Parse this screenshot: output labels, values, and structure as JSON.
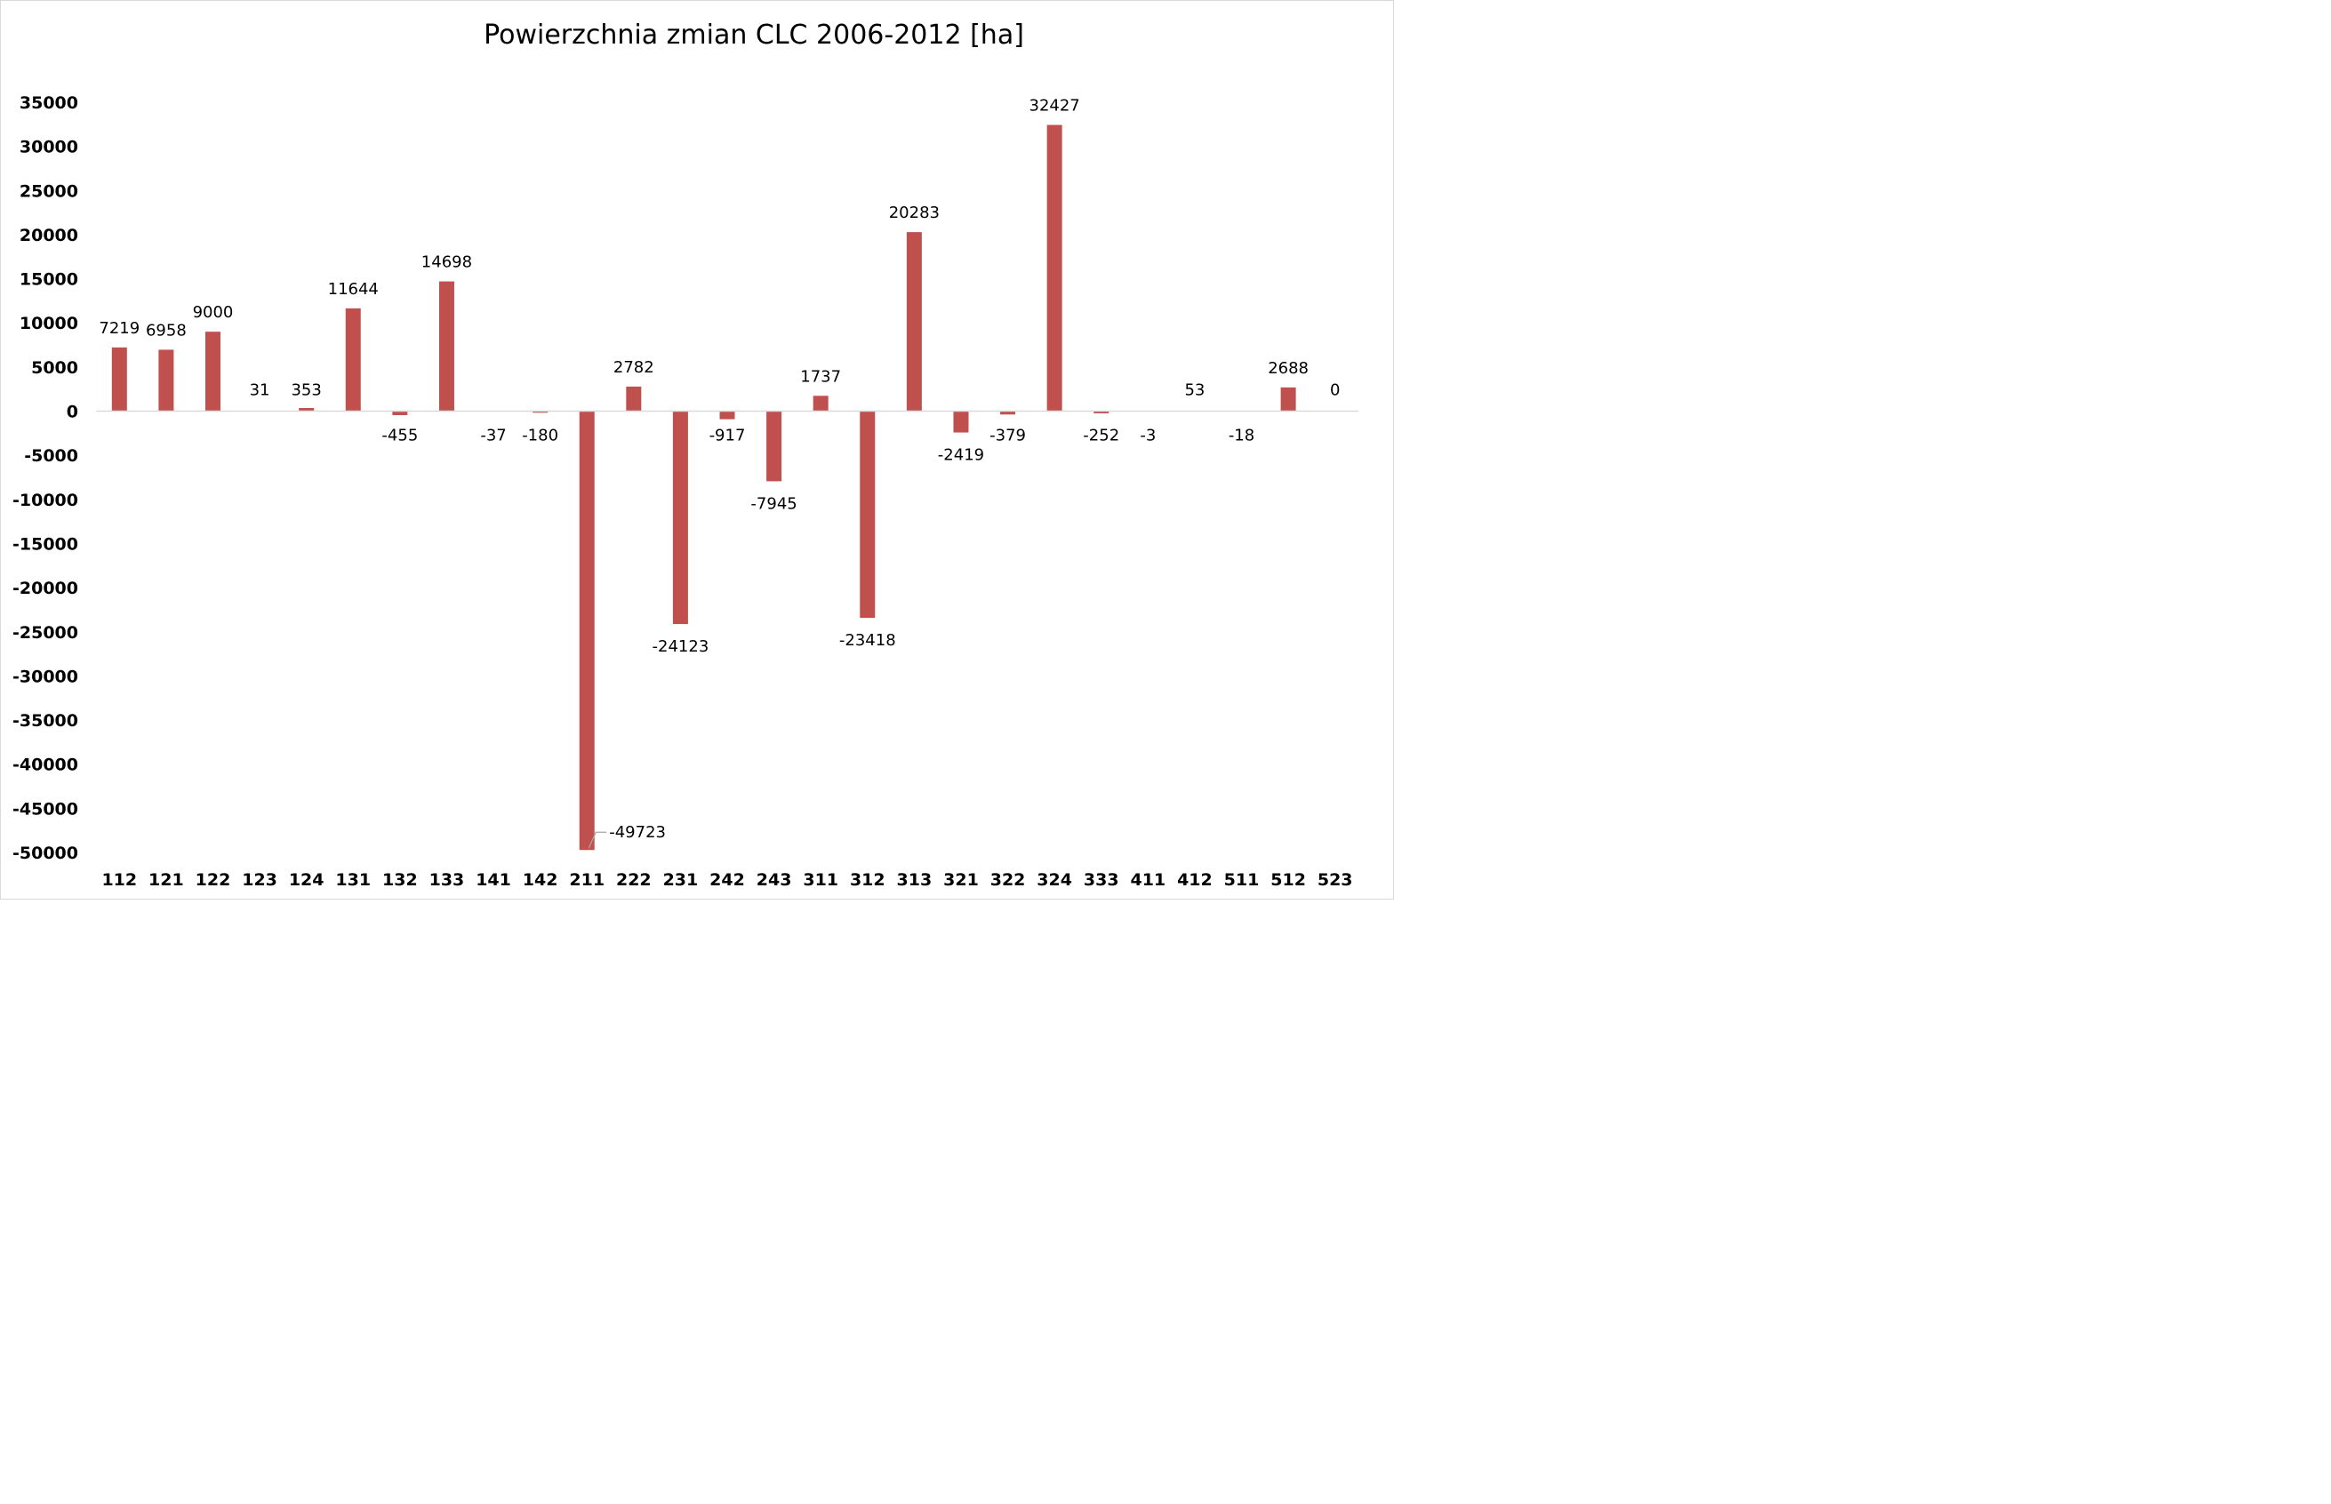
{
  "chart_data": {
    "type": "bar",
    "title": "Powierzchnia zmian CLC 2006-2012 [ha]",
    "xlabel": "",
    "ylabel": "",
    "ylim": [
      -50000,
      35000
    ],
    "yticks": [
      35000,
      30000,
      25000,
      20000,
      15000,
      10000,
      5000,
      0,
      -5000,
      -10000,
      -15000,
      -20000,
      -25000,
      -30000,
      -35000,
      -40000,
      -45000,
      -50000
    ],
    "categories": [
      "112",
      "121",
      "122",
      "123",
      "124",
      "131",
      "132",
      "133",
      "141",
      "142",
      "211",
      "222",
      "231",
      "242",
      "243",
      "311",
      "312",
      "313",
      "321",
      "322",
      "324",
      "333",
      "411",
      "412",
      "511",
      "512",
      "523"
    ],
    "values": [
      7219,
      6958,
      9000,
      31,
      353,
      11644,
      -455,
      14698,
      -37,
      -180,
      -49723,
      2782,
      -24123,
      -917,
      -7945,
      1737,
      -23418,
      20283,
      -2419,
      -379,
      32427,
      -252,
      -3,
      53,
      -18,
      2688,
      0
    ],
    "data_labels": [
      "7219",
      "6958",
      "9000",
      "31",
      "353",
      "11644",
      "-455",
      "14698",
      "-37",
      "-180",
      "-49723",
      "2782",
      "-24123",
      "-917",
      "-7945",
      "1737",
      "-23418",
      "20283",
      "-2419",
      "-379",
      "32427",
      "-252",
      "-3",
      "53",
      "-18",
      "2688",
      "0"
    ],
    "grid": false,
    "legend": "none",
    "colors": {
      "bar": "#c0504d",
      "axis": "#d9d9d9",
      "text": "#000000"
    }
  }
}
